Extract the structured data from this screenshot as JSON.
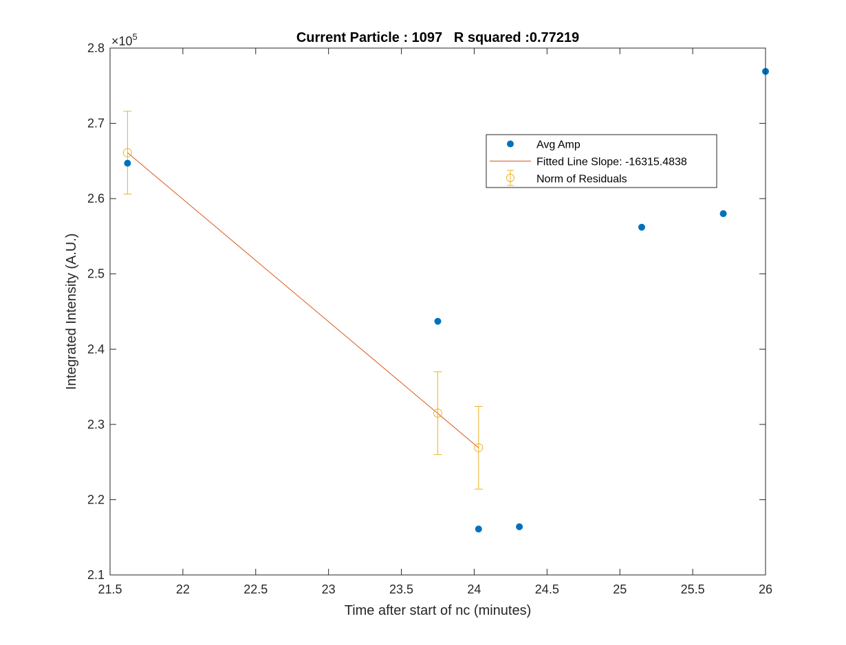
{
  "chart_data": {
    "type": "scatter",
    "title": "Current Particle : 1097   R squared :0.77219",
    "xlabel": "Time after start of nc (minutes)",
    "ylabel": "Integrated Intensity (A.U.)",
    "xlim": [
      21.5,
      26
    ],
    "ylim": [
      210000,
      280000
    ],
    "x_ticks": [
      21.5,
      22,
      22.5,
      23,
      23.5,
      24,
      24.5,
      25,
      25.5,
      26
    ],
    "x_tick_labels": [
      "21.5",
      "22",
      "22.5",
      "23",
      "23.5",
      "24",
      "24.5",
      "25",
      "25.5",
      "26"
    ],
    "y_ticks": [
      210000,
      220000,
      230000,
      240000,
      250000,
      260000,
      270000,
      280000
    ],
    "y_tick_labels": [
      "2.1",
      "2.2",
      "2.3",
      "2.4",
      "2.5",
      "2.6",
      "2.7",
      "2.8"
    ],
    "y_exponent_base": "×10",
    "y_exponent_power": "5",
    "grid": false,
    "legend_position": "top-right",
    "series": [
      {
        "name": "Avg Amp",
        "kind": "scatter",
        "color": "#0072BD",
        "x": [
          21.62,
          23.75,
          24.03,
          24.31,
          25.15,
          25.71,
          26.0
        ],
        "y": [
          264700,
          243700,
          216100,
          216400,
          256200,
          258000,
          276900
        ]
      },
      {
        "name": "Fitted Line Slope: -16315.4838",
        "kind": "line",
        "color": "#D95319",
        "x": [
          21.62,
          24.03
        ],
        "y": [
          266100,
          226900
        ]
      },
      {
        "name": "Norm of Residuals",
        "kind": "errorbar",
        "color": "#EDB120",
        "x": [
          21.62,
          23.75,
          24.03
        ],
        "y": [
          266100,
          231500,
          226900
        ],
        "err": [
          5500,
          5500,
          5500
        ]
      }
    ]
  }
}
